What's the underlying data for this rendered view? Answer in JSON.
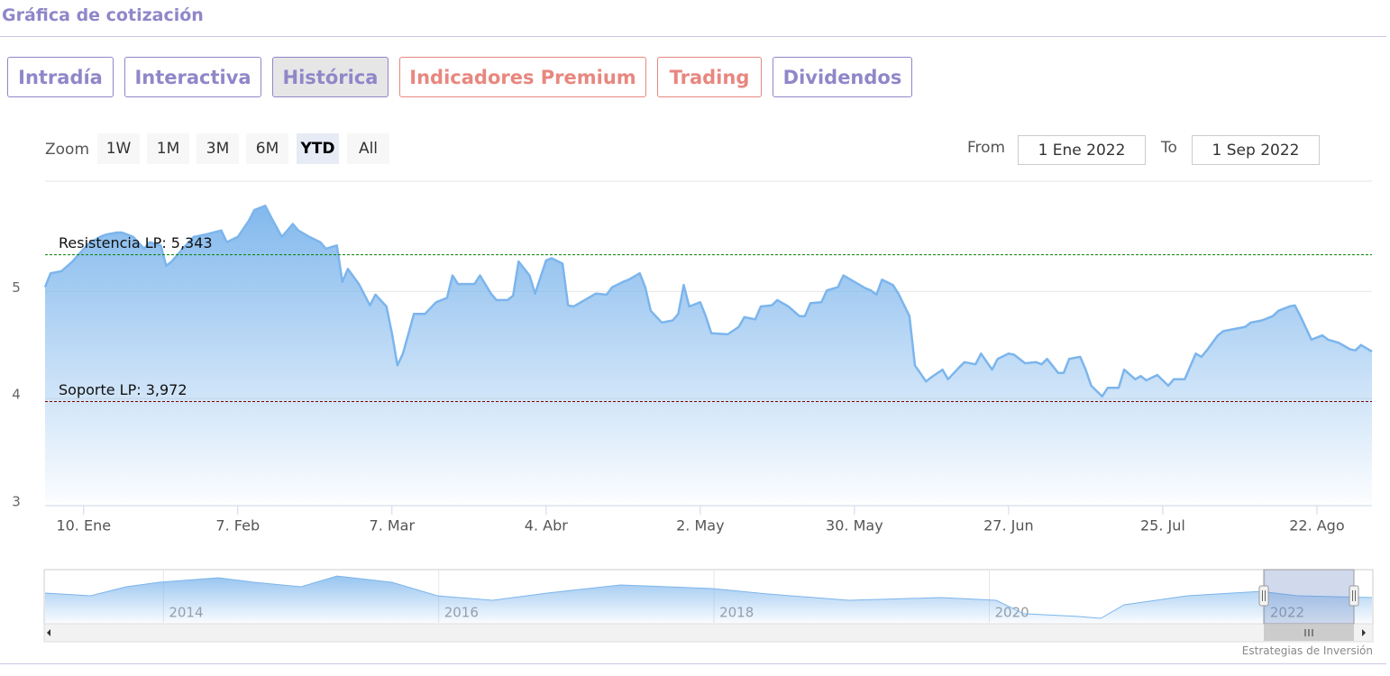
{
  "header": {
    "title": "Gráfica de cotización"
  },
  "tabs": [
    "Intradía",
    "Interactiva",
    "Histórica",
    "Indicadores Premium",
    "Trading",
    "Dividendos"
  ],
  "zoom": {
    "label": "Zoom",
    "buttons": [
      "1W",
      "1M",
      "3M",
      "6M",
      "YTD",
      "All"
    ]
  },
  "range": {
    "from_label": "From",
    "from": "1 Ene 2022",
    "to_label": "To",
    "to": "1 Sep 2022"
  },
  "credit": "Estrategias de Inversión",
  "chart_data": {
    "type": "area",
    "color": "#7cb5ec",
    "x": [
      0,
      1,
      3,
      5,
      6,
      8,
      10,
      11,
      13,
      14,
      16,
      18,
      19,
      21,
      22,
      23,
      25,
      27,
      29,
      32,
      33,
      35,
      37,
      38,
      40,
      41,
      43,
      45,
      46,
      48,
      50,
      51,
      53,
      54,
      55,
      57,
      59,
      60,
      62,
      63,
      64,
      65,
      67,
      69,
      71,
      73,
      74,
      75,
      78,
      79,
      81,
      82,
      84,
      85,
      86,
      88,
      89,
      91,
      92,
      94,
      95,
      96,
      98,
      100,
      102,
      103,
      105,
      106,
      108,
      109,
      110,
      112,
      114,
      115,
      116,
      117,
      119,
      120,
      121,
      124,
      126,
      127,
      129,
      130,
      132,
      133,
      135,
      137,
      138,
      139,
      141,
      142,
      144,
      145,
      147,
      149,
      150,
      151,
      152,
      154,
      155,
      157,
      158,
      160,
      161,
      163,
      164,
      166,
      167,
      169,
      170,
      172,
      173,
      175,
      176,
      178,
      180,
      181,
      182,
      184,
      185,
      186,
      188,
      189,
      190,
      192,
      193,
      195,
      196,
      198,
      199,
      200,
      202,
      204,
      205,
      207,
      209,
      210,
      211,
      213,
      214,
      216,
      218,
      219,
      221,
      223,
      224,
      226,
      227,
      228,
      230,
      232,
      233,
      235,
      237,
      238,
      239,
      241
    ],
    "values": [
      5.04,
      5.17,
      5.19,
      5.28,
      5.34,
      5.45,
      5.51,
      5.53,
      5.55,
      5.55,
      5.51,
      5.4,
      5.46,
      5.43,
      5.24,
      5.28,
      5.4,
      5.51,
      5.53,
      5.57,
      5.46,
      5.51,
      5.66,
      5.76,
      5.8,
      5.7,
      5.51,
      5.63,
      5.57,
      5.51,
      5.46,
      5.4,
      5.43,
      5.09,
      5.21,
      5.07,
      4.87,
      4.97,
      4.86,
      4.61,
      4.31,
      4.42,
      4.79,
      4.79,
      4.9,
      4.94,
      5.15,
      5.07,
      5.07,
      5.15,
      4.98,
      4.92,
      4.92,
      4.96,
      5.28,
      5.15,
      4.98,
      5.29,
      5.31,
      5.26,
      4.87,
      4.86,
      4.92,
      4.98,
      4.97,
      5.04,
      5.09,
      5.11,
      5.17,
      5.04,
      4.82,
      4.71,
      4.73,
      4.79,
      5.06,
      4.86,
      4.9,
      4.77,
      4.61,
      4.6,
      4.67,
      4.76,
      4.74,
      4.86,
      4.87,
      4.92,
      4.86,
      4.77,
      4.77,
      4.89,
      4.9,
      5.01,
      5.04,
      5.15,
      5.09,
      5.03,
      5.01,
      4.97,
      5.11,
      5.06,
      4.98,
      4.77,
      4.31,
      4.16,
      4.2,
      4.27,
      4.18,
      4.29,
      4.34,
      4.32,
      4.42,
      4.27,
      4.37,
      4.42,
      4.41,
      4.33,
      4.34,
      4.32,
      4.37,
      4.24,
      4.24,
      4.37,
      4.39,
      4.27,
      4.12,
      4.02,
      4.1,
      4.1,
      4.27,
      4.18,
      4.21,
      4.17,
      4.22,
      4.12,
      4.18,
      4.18,
      4.42,
      4.39,
      4.45,
      4.59,
      4.63,
      4.65,
      4.67,
      4.71,
      4.73,
      4.77,
      4.82,
      4.86,
      4.87,
      4.77,
      4.55,
      4.59,
      4.55,
      4.52,
      4.46,
      4.45,
      4.5,
      4.44
    ],
    "xlim": [
      0,
      241
    ],
    "xticks": [
      {
        "value": 7,
        "label": "10. Ene"
      },
      {
        "value": 35,
        "label": "7. Feb"
      },
      {
        "value": 63,
        "label": "7. Mar"
      },
      {
        "value": 91,
        "label": "4. Abr"
      },
      {
        "value": 119,
        "label": "2. May"
      },
      {
        "value": 147,
        "label": "30. May"
      },
      {
        "value": 175,
        "label": "27. Jun"
      },
      {
        "value": 203,
        "label": "25. Jul"
      },
      {
        "value": 231,
        "label": "22. Ago"
      }
    ],
    "ylim": [
      3,
      6.03
    ],
    "yticks": [
      3,
      4,
      5
    ],
    "grid": true,
    "plot_lines": [
      {
        "label": "Resistencia LP: 5,343",
        "value": 5.343,
        "color": "#008000"
      },
      {
        "label": "Soporte LP: 3,972",
        "value": 3.972,
        "color": "#800000"
      }
    ],
    "navigator": {
      "x": [
        2013.14,
        2013.47,
        2013.73,
        2013.97,
        2014.4,
        2014.66,
        2015.0,
        2015.26,
        2015.66,
        2015.99,
        2016.39,
        2016.79,
        2017.32,
        2017.99,
        2018.39,
        2018.98,
        2019.65,
        2020.05,
        2020.25,
        2020.64,
        2020.81,
        2020.98,
        2021.44,
        2021.97,
        2022.24,
        2022.78
      ],
      "values": [
        5.06,
        4.83,
        5.6,
        5.99,
        6.38,
        5.99,
        5.6,
        6.53,
        5.99,
        4.83,
        4.44,
        5.06,
        5.76,
        5.45,
        4.98,
        4.44,
        4.67,
        4.44,
        3.28,
        3.05,
        2.89,
        4.05,
        4.83,
        5.21,
        4.83,
        4.67
      ],
      "xlim": [
        2013.14,
        2022.78
      ],
      "ylim": [
        2.5,
        7
      ],
      "xticks": [
        2014,
        2016,
        2018,
        2020,
        2022
      ]
    }
  }
}
